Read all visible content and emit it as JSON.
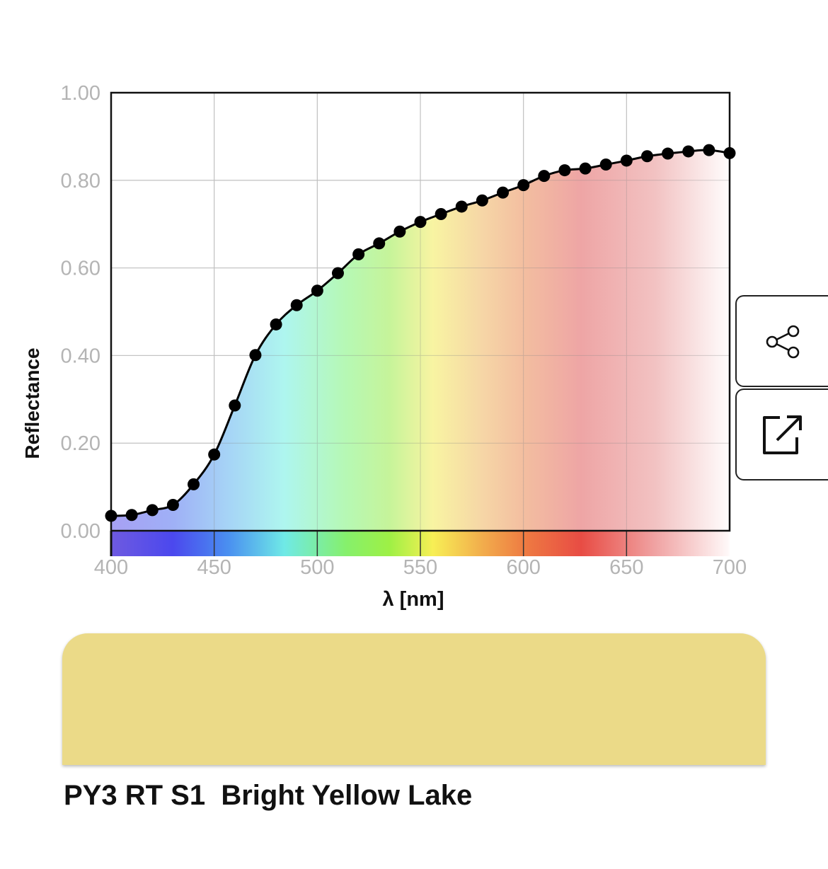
{
  "chart_data": {
    "type": "line",
    "title": "",
    "xlabel": "λ [nm]",
    "ylabel": "Reflectance",
    "xlim": [
      400,
      700
    ],
    "ylim": [
      0,
      1
    ],
    "xticks": [
      "400",
      "450",
      "500",
      "550",
      "600",
      "650",
      "700"
    ],
    "yticks": [
      "0.00",
      "0.20",
      "0.40",
      "0.60",
      "0.80",
      "1.00"
    ],
    "grid": true,
    "legend": "none",
    "x": [
      400,
      410,
      420,
      430,
      440,
      450,
      460,
      470,
      480,
      490,
      500,
      510,
      520,
      530,
      540,
      550,
      560,
      570,
      580,
      590,
      600,
      610,
      620,
      630,
      640,
      650,
      660,
      670,
      680,
      690,
      700
    ],
    "values": [
      0.034,
      0.036,
      0.047,
      0.059,
      0.106,
      0.174,
      0.286,
      0.401,
      0.471,
      0.515,
      0.548,
      0.588,
      0.631,
      0.656,
      0.683,
      0.705,
      0.723,
      0.74,
      0.754,
      0.772,
      0.789,
      0.81,
      0.823,
      0.827,
      0.836,
      0.845,
      0.855,
      0.861,
      0.866,
      0.869,
      0.862
    ]
  },
  "colors": {
    "swatch": "#ebda88",
    "line": "#000000",
    "grid": "#dddddd",
    "tick_label": "#b4b4b4"
  },
  "actions": {
    "share_icon": "share-icon",
    "open_icon": "external-link-icon"
  },
  "pigment": {
    "code": "PY3 RT S1",
    "name": "Bright Yellow Lake"
  }
}
